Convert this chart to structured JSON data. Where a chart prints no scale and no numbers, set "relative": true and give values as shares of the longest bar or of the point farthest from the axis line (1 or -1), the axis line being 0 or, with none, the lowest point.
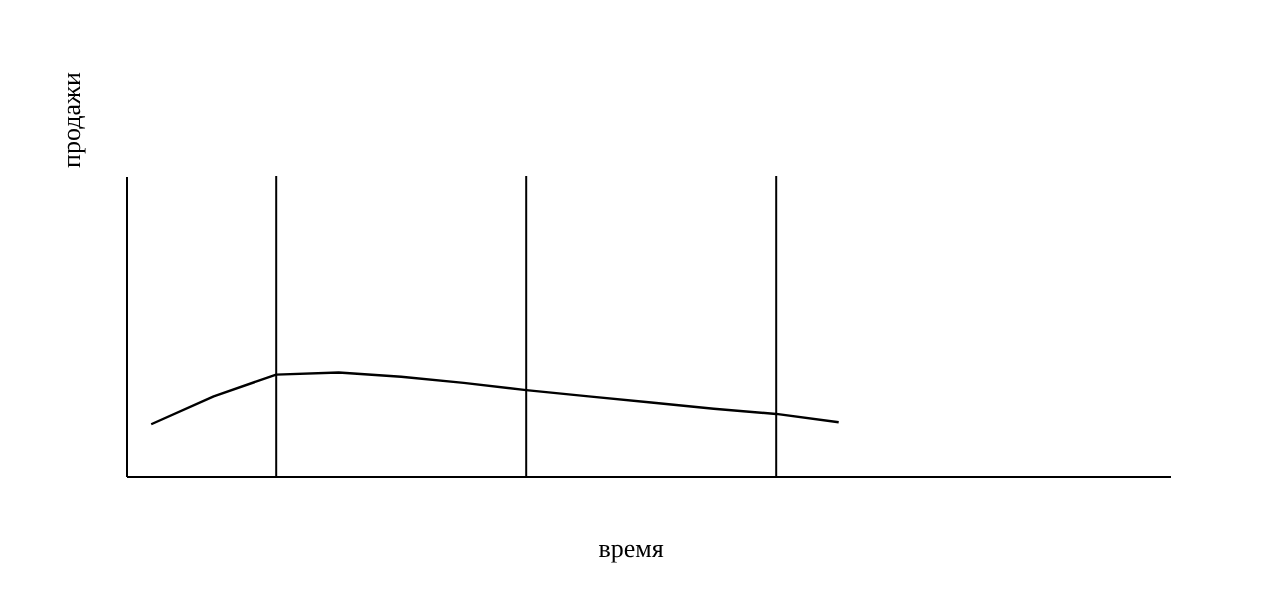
{
  "chart_data": {
    "type": "line",
    "xlabel": "время",
    "annotations": [
      "продажи"
    ],
    "relative": true,
    "grid": "x",
    "categories": [
      null,
      null,
      null,
      null,
      null,
      null,
      null,
      null,
      null,
      null,
      null,
      null
    ],
    "series": [
      {
        "color": "#000000",
        "values": [
          0.5,
          0.77,
          0.98,
          1,
          0.96,
          0.9,
          0.83,
          0.77,
          0.71,
          0.65,
          0.6,
          0.52
        ]
      }
    ]
  }
}
